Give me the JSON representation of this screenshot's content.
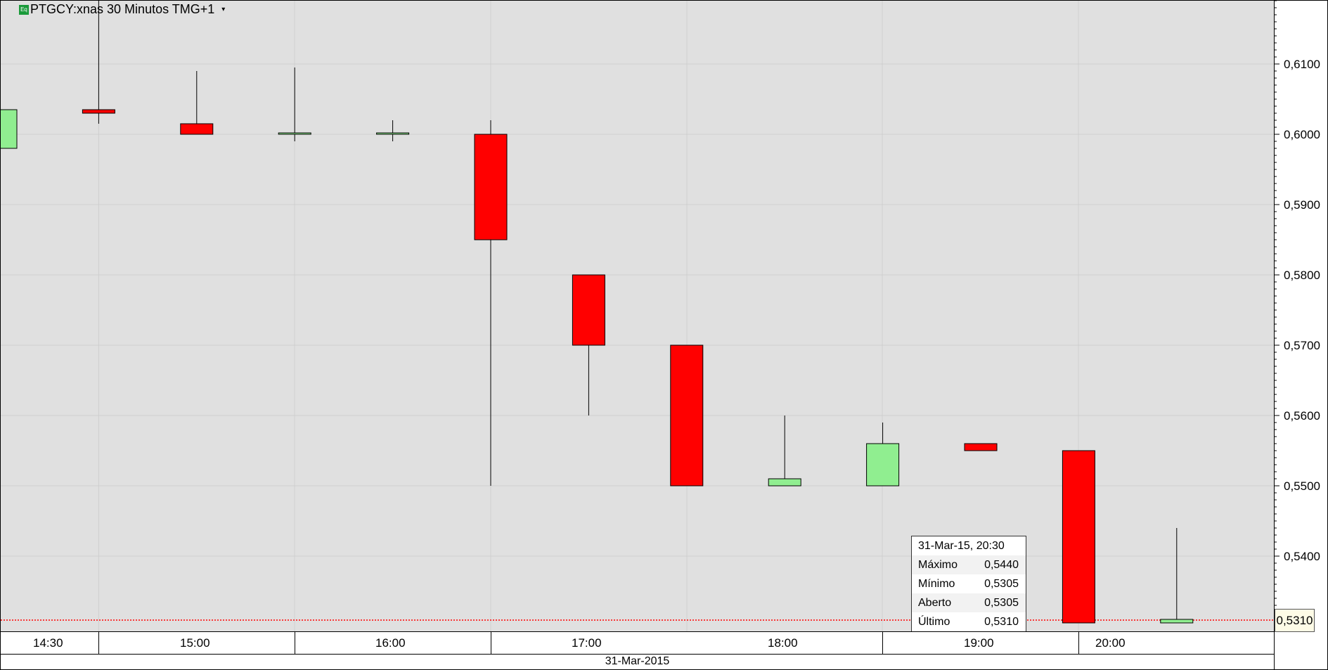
{
  "header": {
    "title": "PTGCY:xnas 30 Minutos TMG+1",
    "badge": "Eq",
    "dropdown": "▾"
  },
  "colors": {
    "up": "#90ee90",
    "down": "#ff0000",
    "background": "#e0e0e0",
    "last_line": "#ff0000"
  },
  "chart_data": {
    "type": "candlestick",
    "title": "PTGCY:xnas 30 Minutos TMG+1",
    "y_ticks": [
      "0,6100",
      "0,6000",
      "0,5900",
      "0,5800",
      "0,5700",
      "0,5600",
      "0,5500",
      "0,5400"
    ],
    "y_tick_values": [
      0.61,
      0.6,
      0.59,
      0.58,
      0.57,
      0.56,
      0.55,
      0.54
    ],
    "x_labels": [
      "14:30",
      "15:00",
      "16:00",
      "17:00",
      "18:00",
      "19:00",
      "20:00"
    ],
    "date_label": "31-Mar-2015",
    "grid": true,
    "last_price": 0.531,
    "last_price_label": "0,5310",
    "candles": [
      {
        "time": "14:00",
        "open": 0.598,
        "high": 0.6035,
        "low": 0.598,
        "close": 0.6035
      },
      {
        "time": "14:30",
        "open": 0.6035,
        "high": 0.619,
        "low": 0.6015,
        "close": 0.603
      },
      {
        "time": "15:00",
        "open": 0.6015,
        "high": 0.609,
        "low": 0.6,
        "close": 0.6
      },
      {
        "time": "15:30",
        "open": 0.6,
        "high": 0.6095,
        "low": 0.599,
        "close": 0.6002
      },
      {
        "time": "16:00",
        "open": 0.6,
        "high": 0.602,
        "low": 0.599,
        "close": 0.6002
      },
      {
        "time": "16:30",
        "open": 0.6,
        "high": 0.602,
        "low": 0.55,
        "close": 0.585
      },
      {
        "time": "17:00",
        "open": 0.58,
        "high": 0.58,
        "low": 0.56,
        "close": 0.57
      },
      {
        "time": "17:30",
        "open": 0.57,
        "high": 0.57,
        "low": 0.55,
        "close": 0.55
      },
      {
        "time": "18:00",
        "open": 0.55,
        "high": 0.56,
        "low": 0.55,
        "close": 0.551
      },
      {
        "time": "18:30",
        "open": 0.55,
        "high": 0.559,
        "low": 0.55,
        "close": 0.556
      },
      {
        "time": "19:00",
        "open": 0.556,
        "high": 0.556,
        "low": 0.555,
        "close": 0.555
      },
      {
        "time": "20:00",
        "open": 0.555,
        "high": 0.555,
        "low": 0.5305,
        "close": 0.5305
      },
      {
        "time": "20:30",
        "open": 0.5305,
        "high": 0.544,
        "low": 0.5305,
        "close": 0.531
      }
    ]
  },
  "tooltip": {
    "date": "31-Mar-15, 20:30",
    "rows": [
      {
        "label": "Máximo",
        "value": "0,5440"
      },
      {
        "label": "Mínimo",
        "value": "0,5305"
      },
      {
        "label": "Aberto",
        "value": "0,5305"
      },
      {
        "label": "Último",
        "value": "0,5310"
      }
    ]
  }
}
